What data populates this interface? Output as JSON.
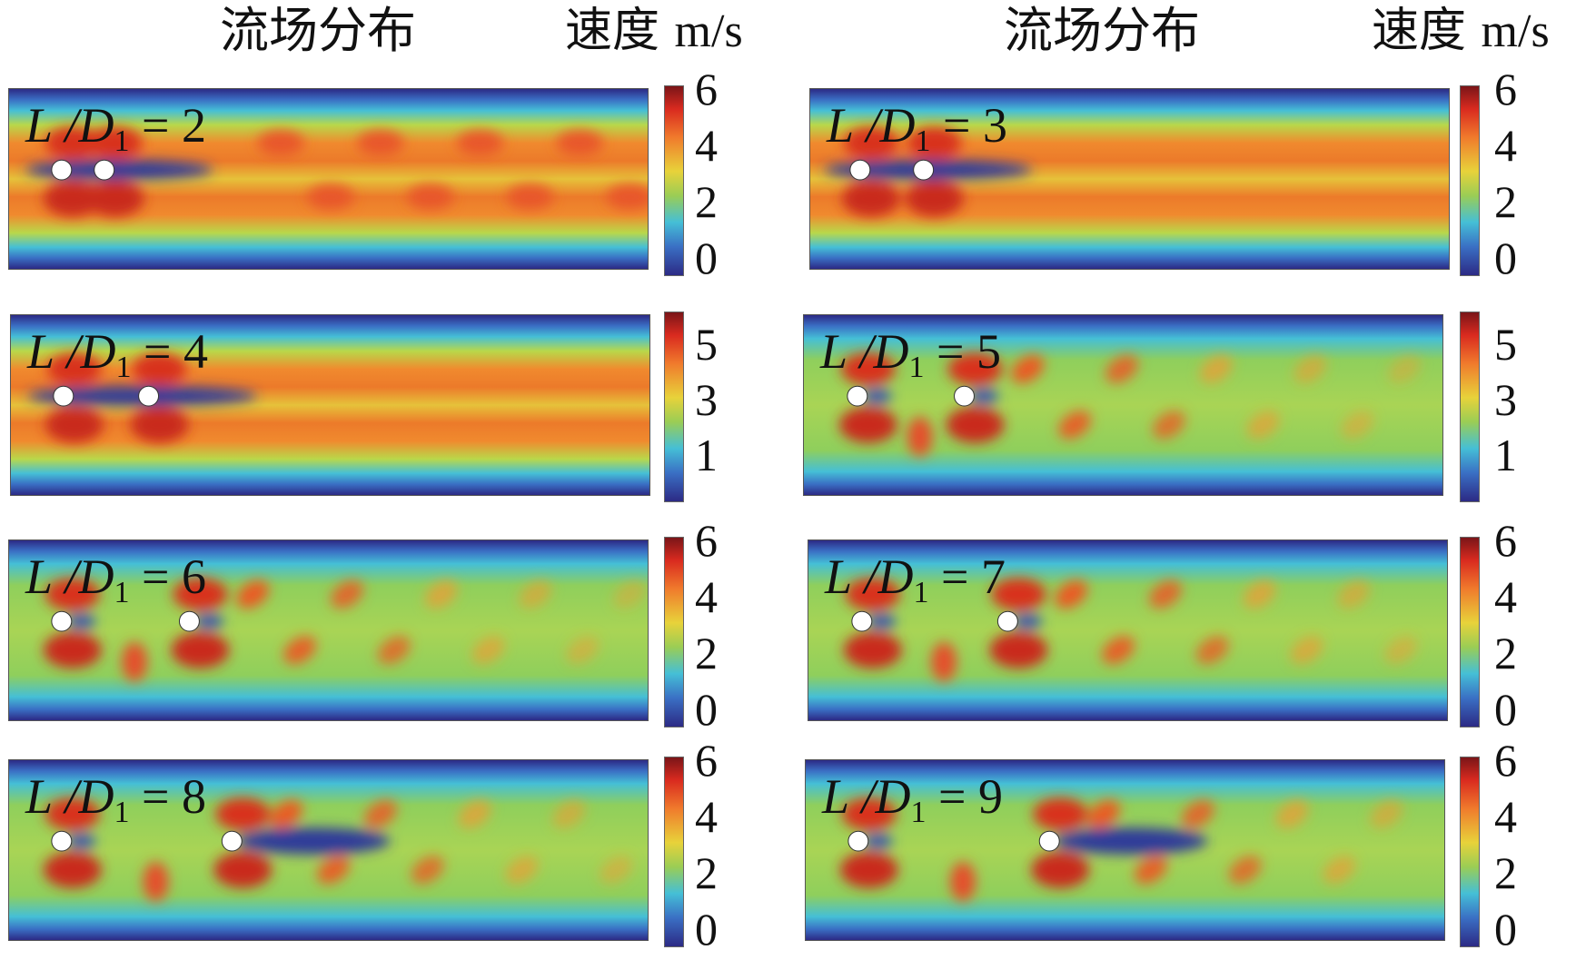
{
  "headers": [
    {
      "title": "流场分布",
      "unit_cn": "速度",
      "unit": "m/s"
    },
    {
      "title": "流场分布",
      "unit_cn": "速度",
      "unit": "m/s"
    }
  ],
  "chart_data": {
    "type": "heatmap",
    "title": "流场分布",
    "colorbar_label": "速度 m/s",
    "panels": [
      {
        "label_L": "L",
        "label_D": "/D",
        "label_sub": "1",
        "label_eq": "= 2",
        "ratio": 2,
        "pattern": "steady banded jet, wake oscillating downstream",
        "colorbar_ticks": [
          "6",
          "4",
          "2",
          "0"
        ],
        "vmin": 0,
        "vmax": 6
      },
      {
        "label_L": "L",
        "label_D": "/D",
        "label_sub": "1",
        "label_eq": "= 3",
        "ratio": 3,
        "pattern": "steady banded jet",
        "colorbar_ticks": [
          "6",
          "4",
          "2",
          "0"
        ],
        "vmin": 0,
        "vmax": 6
      },
      {
        "label_L": "L",
        "label_D": "/D",
        "label_sub": "1",
        "label_eq": "= 4",
        "ratio": 4,
        "pattern": "steady banded jet",
        "colorbar_ticks": [
          "5",
          "3",
          "1"
        ],
        "vmin": 0,
        "vmax": 5.8
      },
      {
        "label_L": "L",
        "label_D": "/D",
        "label_sub": "1",
        "label_eq": "= 5",
        "ratio": 5,
        "pattern": "vortex shedding",
        "colorbar_ticks": [
          "5",
          "3",
          "1"
        ],
        "vmin": 0,
        "vmax": 5.8
      },
      {
        "label_L": "L",
        "label_D": "/D",
        "label_sub": "1",
        "label_eq": "= 6",
        "ratio": 6,
        "pattern": "vortex shedding",
        "colorbar_ticks": [
          "6",
          "4",
          "2",
          "0"
        ],
        "vmin": 0,
        "vmax": 6
      },
      {
        "label_L": "L",
        "label_D": "/D",
        "label_sub": "1",
        "label_eq": "= 7",
        "ratio": 7,
        "pattern": "vortex shedding",
        "colorbar_ticks": [
          "6",
          "4",
          "2",
          "0"
        ],
        "vmin": 0,
        "vmax": 6
      },
      {
        "label_L": "L",
        "label_D": "/D",
        "label_sub": "1",
        "label_eq": "= 8",
        "ratio": 8,
        "pattern": "vortex shedding with long wake",
        "colorbar_ticks": [
          "6",
          "4",
          "2",
          "0"
        ],
        "vmin": 0,
        "vmax": 6
      },
      {
        "label_L": "L",
        "label_D": "/D",
        "label_sub": "1",
        "label_eq": "= 9",
        "ratio": 9,
        "pattern": "vortex shedding with long wake",
        "colorbar_ticks": [
          "6",
          "4",
          "2",
          "0"
        ],
        "vmin": 0,
        "vmax": 6
      }
    ]
  }
}
